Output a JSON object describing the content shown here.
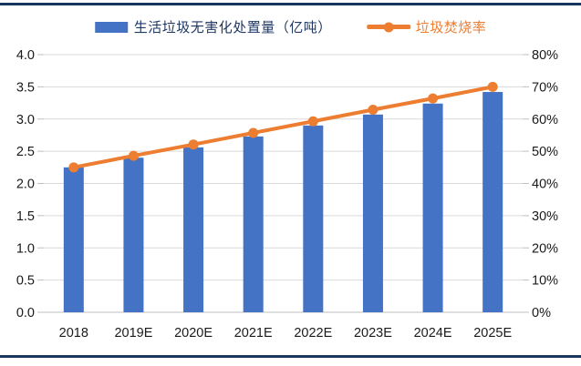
{
  "colors": {
    "frame_rule": "#17375E",
    "bar_blue": "#4472C4",
    "line_orange": "#ED7D31",
    "gridline": "#D9D9D9",
    "axis_line": "#BFBFBF",
    "axis_text": "#1A1A1A",
    "bar_legend_text": "#1F3864",
    "line_legend_text": "#ED7D31",
    "background": "#FFFFFF"
  },
  "chart_data": {
    "type": "bar",
    "subtype": "combo-bar-line",
    "title": "",
    "categories": [
      "2018",
      "2019E",
      "2020E",
      "2021E",
      "2022E",
      "2023E",
      "2024E",
      "2025E"
    ],
    "series": [
      {
        "name": "生活垃圾无害化处置量（亿吨）",
        "type": "bar",
        "axis": "left",
        "color": "#4472C4",
        "values": [
          2.25,
          2.4,
          2.56,
          2.73,
          2.9,
          3.07,
          3.24,
          3.42
        ]
      },
      {
        "name": "垃圾焚烧率",
        "type": "line",
        "axis": "right",
        "color": "#ED7D31",
        "values": [
          45.0,
          48.6,
          52.1,
          55.7,
          59.3,
          62.9,
          66.4,
          70.0
        ],
        "unit": "%"
      }
    ],
    "left_axis": {
      "min": 0.0,
      "max": 4.0,
      "step": 0.5,
      "tick_labels_top_to_bottom": [
        "4.0",
        "3.5",
        "3.0",
        "2.5",
        "2.0",
        "1.5",
        "1.0",
        "0.5",
        "0.0"
      ]
    },
    "right_axis": {
      "min": 0,
      "max": 80,
      "step": 10,
      "tick_labels_top_to_bottom": [
        "80%",
        "70%",
        "60%",
        "50%",
        "40%",
        "30%",
        "20%",
        "10%",
        "0%"
      ]
    },
    "grid": true,
    "legend_position": "top"
  },
  "legend": {
    "bar_label": "生活垃圾无害化处置量（亿吨）",
    "line_label": "垃圾焚烧率"
  }
}
